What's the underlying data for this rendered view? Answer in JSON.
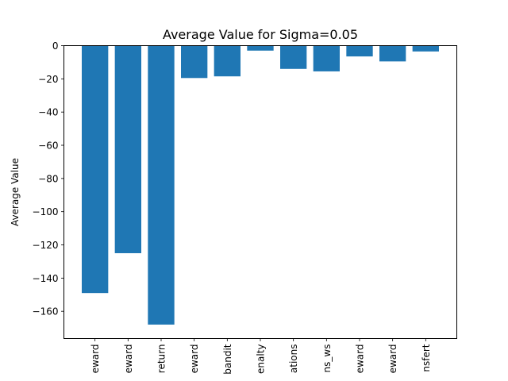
{
  "chart_data": {
    "type": "bar",
    "title": "Average Value for Sigma=0.05",
    "xlabel": "",
    "ylabel": "Average Value",
    "categories": [
      "eward",
      "eward",
      "return",
      "eward",
      "bandit",
      "enalty",
      "ations",
      "ns_ws",
      "eward",
      "eward",
      "nsfert"
    ],
    "values": [
      -149,
      -125,
      -168,
      -19.5,
      -18.5,
      -3,
      -14,
      -15.5,
      -6.5,
      -9.5,
      -3.5
    ],
    "ylim": [
      -176.4,
      0
    ],
    "yticks": [
      0,
      -20,
      -40,
      -60,
      -80,
      -100,
      -120,
      -140,
      -160
    ],
    "ytick_labels": [
      "0",
      "−20",
      "−40",
      "−60",
      "−80",
      "−100",
      "−120",
      "−140",
      "−160"
    ],
    "bar_color": "#1f77b4",
    "grid": false,
    "legend": "none"
  }
}
